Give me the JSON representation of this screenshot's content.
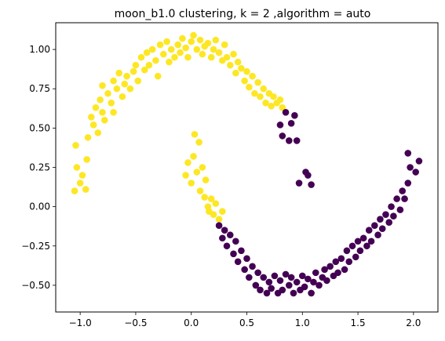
{
  "chart_data": {
    "type": "scatter",
    "title": "moon_b1.0 clustering, k = 2 ,algorithm = auto",
    "xlabel": "",
    "ylabel": "",
    "xlim": [
      -1.22,
      2.22
    ],
    "ylim": [
      -0.67,
      1.17
    ],
    "xticks": [
      -1.0,
      -0.5,
      0.0,
      0.5,
      1.0,
      1.5,
      2.0
    ],
    "xtick_labels": [
      "−1.0",
      "−0.5",
      "0.0",
      "0.5",
      "1.0",
      "1.5",
      "2.0"
    ],
    "yticks": [
      -0.5,
      -0.25,
      0.0,
      0.25,
      0.5,
      0.75,
      1.0
    ],
    "ytick_labels": [
      "−0.50",
      "−0.25",
      "0.00",
      "0.25",
      "0.50",
      "0.75",
      "1.00"
    ],
    "grid": false,
    "legend": "none",
    "series": [
      {
        "color": "#fde725",
        "points": [
          [
            -1.05,
            0.1
          ],
          [
            -1.03,
            0.25
          ],
          [
            -1.04,
            0.39
          ],
          [
            -1.0,
            0.15
          ],
          [
            -0.98,
            0.2
          ],
          [
            -0.95,
            0.11
          ],
          [
            -0.94,
            0.3
          ],
          [
            -0.93,
            0.44
          ],
          [
            -0.9,
            0.57
          ],
          [
            -0.88,
            0.52
          ],
          [
            -0.86,
            0.63
          ],
          [
            -0.84,
            0.47
          ],
          [
            -0.82,
            0.68
          ],
          [
            -0.8,
            0.6
          ],
          [
            -0.8,
            0.77
          ],
          [
            -0.78,
            0.55
          ],
          [
            -0.75,
            0.72
          ],
          [
            -0.72,
            0.66
          ],
          [
            -0.7,
            0.6
          ],
          [
            -0.7,
            0.8
          ],
          [
            -0.67,
            0.75
          ],
          [
            -0.65,
            0.85
          ],
          [
            -0.62,
            0.7
          ],
          [
            -0.6,
            0.78
          ],
          [
            -0.58,
            0.83
          ],
          [
            -0.55,
            0.75
          ],
          [
            -0.52,
            0.86
          ],
          [
            -0.5,
            0.9
          ],
          [
            -0.48,
            0.8
          ],
          [
            -0.45,
            0.95
          ],
          [
            -0.42,
            0.87
          ],
          [
            -0.4,
            0.98
          ],
          [
            -0.38,
            0.9
          ],
          [
            -0.35,
            1.0
          ],
          [
            -0.32,
            0.93
          ],
          [
            -0.3,
            0.83
          ],
          [
            -0.28,
            1.03
          ],
          [
            -0.25,
            0.97
          ],
          [
            -0.22,
            1.05
          ],
          [
            -0.2,
            0.92
          ],
          [
            -0.18,
            1.0
          ],
          [
            -0.15,
            0.95
          ],
          [
            -0.12,
            1.03
          ],
          [
            -0.1,
            0.98
          ],
          [
            -0.08,
            1.07
          ],
          [
            -0.05,
            1.01
          ],
          [
            -0.03,
            0.95
          ],
          [
            0.0,
            1.05
          ],
          [
            0.02,
            1.09
          ],
          [
            0.05,
            1.0
          ],
          [
            0.08,
            1.06
          ],
          [
            0.1,
            0.97
          ],
          [
            0.12,
            1.02
          ],
          [
            0.15,
            1.04
          ],
          [
            0.18,
            0.95
          ],
          [
            0.2,
            1.0
          ],
          [
            0.22,
            1.06
          ],
          [
            0.25,
            0.98
          ],
          [
            0.28,
            0.93
          ],
          [
            0.3,
            1.03
          ],
          [
            0.32,
            0.95
          ],
          [
            0.35,
            0.9
          ],
          [
            0.38,
            0.97
          ],
          [
            0.4,
            0.85
          ],
          [
            0.42,
            0.92
          ],
          [
            0.45,
            0.88
          ],
          [
            0.48,
            0.8
          ],
          [
            0.5,
            0.86
          ],
          [
            0.52,
            0.76
          ],
          [
            0.55,
            0.83
          ],
          [
            0.57,
            0.72
          ],
          [
            0.6,
            0.79
          ],
          [
            0.62,
            0.7
          ],
          [
            0.65,
            0.75
          ],
          [
            0.67,
            0.66
          ],
          [
            0.7,
            0.72
          ],
          [
            0.72,
            0.64
          ],
          [
            0.74,
            0.7
          ],
          [
            0.77,
            0.66
          ],
          [
            0.8,
            0.68
          ],
          [
            0.82,
            0.63
          ],
          [
            -0.05,
            0.2
          ],
          [
            -0.03,
            0.28
          ],
          [
            0.0,
            0.15
          ],
          [
            0.02,
            0.32
          ],
          [
            0.03,
            0.46
          ],
          [
            0.05,
            0.22
          ],
          [
            0.07,
            0.41
          ],
          [
            0.08,
            0.1
          ],
          [
            0.1,
            0.25
          ],
          [
            0.12,
            0.06
          ],
          [
            0.13,
            0.17
          ],
          [
            0.15,
            0.0
          ],
          [
            0.16,
            -0.03
          ],
          [
            0.18,
            0.05
          ],
          [
            0.2,
            -0.05
          ],
          [
            0.22,
            0.02
          ],
          [
            0.25,
            -0.08
          ],
          [
            0.28,
            -0.03
          ]
        ]
      },
      {
        "color": "#440154",
        "points": [
          [
            0.8,
            0.52
          ],
          [
            0.82,
            0.45
          ],
          [
            0.85,
            0.6
          ],
          [
            0.88,
            0.42
          ],
          [
            0.9,
            0.53
          ],
          [
            0.93,
            0.58
          ],
          [
            0.95,
            0.42
          ],
          [
            0.97,
            0.15
          ],
          [
            1.03,
            0.22
          ],
          [
            1.05,
            0.2
          ],
          [
            1.08,
            0.14
          ],
          [
            0.25,
            -0.12
          ],
          [
            0.28,
            -0.2
          ],
          [
            0.3,
            -0.15
          ],
          [
            0.32,
            -0.25
          ],
          [
            0.35,
            -0.18
          ],
          [
            0.38,
            -0.3
          ],
          [
            0.4,
            -0.22
          ],
          [
            0.42,
            -0.35
          ],
          [
            0.45,
            -0.28
          ],
          [
            0.48,
            -0.4
          ],
          [
            0.5,
            -0.33
          ],
          [
            0.52,
            -0.45
          ],
          [
            0.55,
            -0.38
          ],
          [
            0.58,
            -0.5
          ],
          [
            0.6,
            -0.42
          ],
          [
            0.62,
            -0.53
          ],
          [
            0.65,
            -0.45
          ],
          [
            0.68,
            -0.55
          ],
          [
            0.7,
            -0.48
          ],
          [
            0.72,
            -0.52
          ],
          [
            0.75,
            -0.44
          ],
          [
            0.78,
            -0.55
          ],
          [
            0.8,
            -0.47
          ],
          [
            0.82,
            -0.53
          ],
          [
            0.85,
            -0.43
          ],
          [
            0.88,
            -0.5
          ],
          [
            0.9,
            -0.45
          ],
          [
            0.92,
            -0.55
          ],
          [
            0.95,
            -0.48
          ],
          [
            0.98,
            -0.53
          ],
          [
            1.0,
            -0.44
          ],
          [
            1.02,
            -0.51
          ],
          [
            1.05,
            -0.46
          ],
          [
            1.08,
            -0.55
          ],
          [
            1.1,
            -0.48
          ],
          [
            1.12,
            -0.42
          ],
          [
            1.15,
            -0.5
          ],
          [
            1.18,
            -0.45
          ],
          [
            1.2,
            -0.4
          ],
          [
            1.22,
            -0.47
          ],
          [
            1.25,
            -0.38
          ],
          [
            1.28,
            -0.44
          ],
          [
            1.3,
            -0.35
          ],
          [
            1.32,
            -0.42
          ],
          [
            1.35,
            -0.33
          ],
          [
            1.38,
            -0.4
          ],
          [
            1.4,
            -0.28
          ],
          [
            1.42,
            -0.35
          ],
          [
            1.45,
            -0.25
          ],
          [
            1.48,
            -0.32
          ],
          [
            1.5,
            -0.22
          ],
          [
            1.52,
            -0.28
          ],
          [
            1.55,
            -0.2
          ],
          [
            1.58,
            -0.25
          ],
          [
            1.6,
            -0.15
          ],
          [
            1.62,
            -0.22
          ],
          [
            1.65,
            -0.12
          ],
          [
            1.68,
            -0.18
          ],
          [
            1.7,
            -0.08
          ],
          [
            1.72,
            -0.14
          ],
          [
            1.75,
            -0.05
          ],
          [
            1.78,
            -0.1
          ],
          [
            1.8,
            0.0
          ],
          [
            1.82,
            -0.06
          ],
          [
            1.85,
            0.05
          ],
          [
            1.88,
            -0.02
          ],
          [
            1.9,
            0.1
          ],
          [
            1.92,
            0.05
          ],
          [
            1.95,
            0.15
          ],
          [
            1.97,
            0.25
          ],
          [
            1.95,
            0.34
          ],
          [
            2.02,
            0.22
          ],
          [
            2.05,
            0.29
          ]
        ]
      }
    ]
  }
}
